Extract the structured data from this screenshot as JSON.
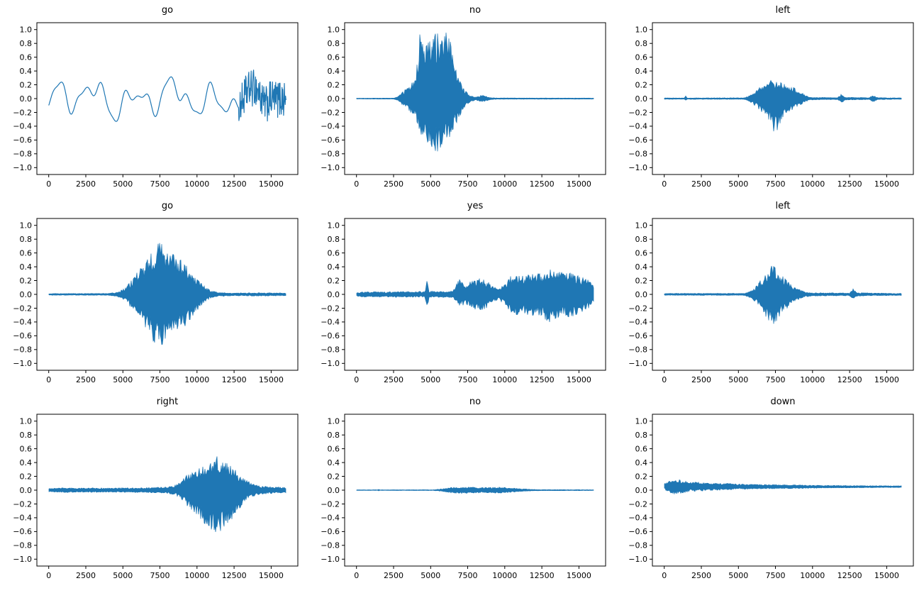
{
  "figure": {
    "background": "#ffffff"
  },
  "chart_data": {
    "type": "line",
    "description": "3x3 grid of audio waveform amplitude plots, each titled with a spoken keyword label",
    "grid": {
      "rows": 3,
      "cols": 3
    },
    "xlim": [
      -800,
      16800
    ],
    "ylim": [
      -1.1,
      1.1
    ],
    "xticks": [
      0,
      2500,
      5000,
      7500,
      10000,
      12500,
      15000
    ],
    "yticks": [
      1.0,
      0.8,
      0.6,
      0.4,
      0.2,
      0.0,
      -0.2,
      -0.4,
      -0.6,
      -0.8,
      -1.0
    ],
    "line_color": "#1f77b4",
    "subplots": [
      {
        "title": "go",
        "kind": "smooth",
        "offset": 0,
        "dense_from": 12800,
        "dense_amp": 0.27,
        "envelope": [
          [
            0,
            0.3
          ],
          [
            16000,
            0.3
          ]
        ]
      },
      {
        "title": "no",
        "kind": "waveform",
        "offset": 0,
        "envelope": [
          [
            0,
            0.006
          ],
          [
            2500,
            0.008
          ],
          [
            2800,
            0.03
          ],
          [
            3200,
            0.12
          ],
          [
            3600,
            0.2
          ],
          [
            4000,
            0.35,
            0.3
          ],
          [
            4300,
            1.0,
            0.5
          ],
          [
            4700,
            1.0,
            0.65
          ],
          [
            5000,
            1.0,
            0.78
          ],
          [
            5500,
            1.0,
            0.78
          ],
          [
            6000,
            0.97,
            0.7
          ],
          [
            6300,
            0.9,
            0.6
          ],
          [
            6600,
            0.5,
            0.4
          ],
          [
            6900,
            0.3,
            0.3
          ],
          [
            7200,
            0.15,
            0.15
          ],
          [
            7600,
            0.06,
            0.06
          ],
          [
            8000,
            0.02,
            0.02
          ],
          [
            8400,
            0.05,
            0.05
          ],
          [
            8700,
            0.05,
            0.05
          ],
          [
            9000,
            0.015,
            0.015
          ],
          [
            9500,
            0.01,
            0.01
          ],
          [
            16000,
            0.008,
            0.008
          ]
        ]
      },
      {
        "title": "left",
        "kind": "waveform",
        "offset": 0,
        "envelope": [
          [
            0,
            0.01
          ],
          [
            1350,
            0.01
          ],
          [
            1450,
            0.04
          ],
          [
            1550,
            0.01
          ],
          [
            5400,
            0.012
          ],
          [
            5800,
            0.05
          ],
          [
            6200,
            0.12
          ],
          [
            6600,
            0.2
          ],
          [
            7000,
            0.25,
            0.3
          ],
          [
            7400,
            0.28,
            0.5
          ],
          [
            7700,
            0.25,
            0.45
          ],
          [
            8000,
            0.22,
            0.3
          ],
          [
            8400,
            0.2
          ],
          [
            8800,
            0.15
          ],
          [
            9200,
            0.1
          ],
          [
            9500,
            0.05
          ],
          [
            9800,
            0.02
          ],
          [
            11700,
            0.015
          ],
          [
            11950,
            0.07
          ],
          [
            12200,
            0.02
          ],
          [
            13800,
            0.015
          ],
          [
            14100,
            0.05
          ],
          [
            14400,
            0.015
          ],
          [
            16000,
            0.01
          ]
        ]
      },
      {
        "title": "go",
        "kind": "waveform",
        "offset": 0,
        "envelope": [
          [
            0,
            0.012
          ],
          [
            4000,
            0.015
          ],
          [
            4600,
            0.03
          ],
          [
            5200,
            0.1
          ],
          [
            5700,
            0.25
          ],
          [
            6200,
            0.4
          ],
          [
            6700,
            0.55
          ],
          [
            7100,
            0.7
          ],
          [
            7400,
            0.78
          ],
          [
            7700,
            0.72
          ],
          [
            8100,
            0.65
          ],
          [
            8500,
            0.58
          ],
          [
            9000,
            0.5
          ],
          [
            9400,
            0.42
          ],
          [
            9800,
            0.3
          ],
          [
            10200,
            0.18
          ],
          [
            10600,
            0.1
          ],
          [
            11000,
            0.05
          ],
          [
            11500,
            0.03
          ],
          [
            12500,
            0.02
          ],
          [
            14000,
            0.025
          ],
          [
            16000,
            0.02
          ]
        ]
      },
      {
        "title": "yes",
        "kind": "waveform",
        "offset": 0,
        "envelope": [
          [
            0,
            0.03
          ],
          [
            500,
            0.045
          ],
          [
            1000,
            0.035
          ],
          [
            1500,
            0.045
          ],
          [
            2000,
            0.035
          ],
          [
            2500,
            0.045
          ],
          [
            3000,
            0.04
          ],
          [
            3500,
            0.045
          ],
          [
            4000,
            0.04
          ],
          [
            4600,
            0.045
          ],
          [
            4750,
            0.2,
            0.27
          ],
          [
            4900,
            0.05
          ],
          [
            5500,
            0.045
          ],
          [
            6000,
            0.05
          ],
          [
            6500,
            0.05
          ],
          [
            7000,
            0.28,
            0.18
          ],
          [
            7300,
            0.15
          ],
          [
            7600,
            0.18
          ],
          [
            8000,
            0.22
          ],
          [
            8400,
            0.25
          ],
          [
            8800,
            0.2
          ],
          [
            9200,
            0.12
          ],
          [
            9600,
            0.08
          ],
          [
            10000,
            0.15
          ],
          [
            10400,
            0.28
          ],
          [
            10800,
            0.3
          ],
          [
            11200,
            0.28
          ],
          [
            11600,
            0.3
          ],
          [
            12000,
            0.35
          ],
          [
            12400,
            0.3
          ],
          [
            12800,
            0.38
          ],
          [
            13200,
            0.42
          ],
          [
            13600,
            0.35
          ],
          [
            14000,
            0.3
          ],
          [
            14400,
            0.35
          ],
          [
            14800,
            0.3
          ],
          [
            15300,
            0.25
          ],
          [
            15700,
            0.2
          ],
          [
            16000,
            0.12
          ]
        ]
      },
      {
        "title": "left",
        "kind": "waveform",
        "offset": 0,
        "envelope": [
          [
            0,
            0.015
          ],
          [
            5400,
            0.015
          ],
          [
            5800,
            0.05
          ],
          [
            6200,
            0.12
          ],
          [
            6600,
            0.25
          ],
          [
            7000,
            0.38
          ],
          [
            7300,
            0.46
          ],
          [
            7600,
            0.38
          ],
          [
            7900,
            0.28
          ],
          [
            8300,
            0.2
          ],
          [
            8700,
            0.12
          ],
          [
            9100,
            0.07
          ],
          [
            9500,
            0.04
          ],
          [
            10000,
            0.025
          ],
          [
            12500,
            0.02
          ],
          [
            12750,
            0.09
          ],
          [
            13000,
            0.025
          ],
          [
            16000,
            0.015
          ]
        ]
      },
      {
        "title": "right",
        "kind": "waveform",
        "offset": 0,
        "envelope": [
          [
            0,
            0.025
          ],
          [
            1000,
            0.035
          ],
          [
            2000,
            0.03
          ],
          [
            3000,
            0.035
          ],
          [
            4000,
            0.03
          ],
          [
            5000,
            0.035
          ],
          [
            6000,
            0.035
          ],
          [
            7000,
            0.04
          ],
          [
            8000,
            0.05
          ],
          [
            8600,
            0.08
          ],
          [
            9000,
            0.15
          ],
          [
            9400,
            0.25
          ],
          [
            9800,
            0.3,
            0.35
          ],
          [
            10300,
            0.35,
            0.45
          ],
          [
            10800,
            0.42,
            0.55
          ],
          [
            11300,
            0.5,
            0.65
          ],
          [
            11800,
            0.42,
            0.55
          ],
          [
            12300,
            0.35,
            0.45
          ],
          [
            12800,
            0.25,
            0.3
          ],
          [
            13300,
            0.15
          ],
          [
            13800,
            0.09
          ],
          [
            14300,
            0.06
          ],
          [
            15000,
            0.05
          ],
          [
            16000,
            0.04
          ]
        ]
      },
      {
        "title": "no",
        "kind": "waveform",
        "offset": 0,
        "envelope": [
          [
            0,
            0.005
          ],
          [
            1400,
            0.005
          ],
          [
            1500,
            0.012
          ],
          [
            1600,
            0.005
          ],
          [
            5200,
            0.006
          ],
          [
            5800,
            0.02
          ],
          [
            6400,
            0.04
          ],
          [
            7000,
            0.05
          ],
          [
            7600,
            0.045
          ],
          [
            8200,
            0.04
          ],
          [
            8800,
            0.04
          ],
          [
            9400,
            0.045
          ],
          [
            10000,
            0.04
          ],
          [
            10600,
            0.03
          ],
          [
            11200,
            0.02
          ],
          [
            11800,
            0.012
          ],
          [
            12400,
            0.008
          ],
          [
            16000,
            0.006
          ]
        ]
      },
      {
        "title": "down",
        "kind": "waveform",
        "offset": 0.05,
        "envelope": [
          [
            0,
            0.04
          ],
          [
            300,
            0.09
          ],
          [
            600,
            0.11
          ],
          [
            1000,
            0.1
          ],
          [
            1500,
            0.08
          ],
          [
            2000,
            0.07
          ],
          [
            3000,
            0.055
          ],
          [
            4000,
            0.05
          ],
          [
            5000,
            0.04
          ],
          [
            6000,
            0.035
          ],
          [
            8000,
            0.03
          ],
          [
            10000,
            0.022
          ],
          [
            12000,
            0.018
          ],
          [
            14000,
            0.014
          ],
          [
            16000,
            0.012
          ]
        ]
      }
    ]
  }
}
